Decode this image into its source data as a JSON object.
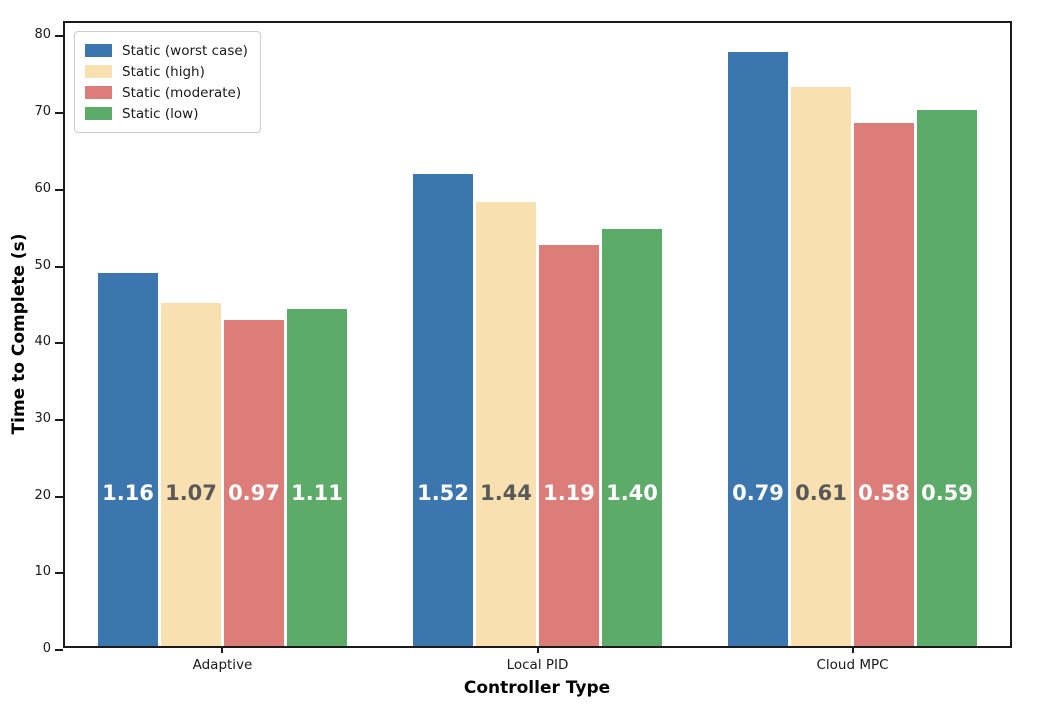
{
  "figure": {
    "background": "#ffffff",
    "spine_color": "#1a1a1a",
    "legend_border_color": "#cccccc"
  },
  "chart_data": {
    "type": "bar",
    "title": "",
    "xlabel": "Controller Type",
    "ylabel": "Time to Complete (s)",
    "ylim": [
      0,
      80
    ],
    "yticks": [
      0,
      10,
      20,
      30,
      40,
      50,
      60,
      70,
      80
    ],
    "categories": [
      "Adaptive",
      "Local PID",
      "Cloud MPC"
    ],
    "grid": false,
    "legend_position": "upper left",
    "series": [
      {
        "name": "Static (worst case)",
        "color": "#3b76af",
        "bar_label_color": "#ffffff",
        "values": [
          49.0,
          62.0,
          78.0
        ],
        "bar_labels": [
          "1.16",
          "1.52",
          "0.79"
        ]
      },
      {
        "name": "Static (high)",
        "color": "#f8e0b1",
        "bar_label_color": "#595959",
        "values": [
          45.0,
          58.3,
          73.4
        ],
        "bar_labels": [
          "1.07",
          "1.44",
          "0.61"
        ]
      },
      {
        "name": "Static (moderate)",
        "color": "#dc7d7a",
        "bar_label_color": "#ffffff",
        "values": [
          42.8,
          52.6,
          68.7
        ],
        "bar_labels": [
          "0.97",
          "1.19",
          "0.58"
        ]
      },
      {
        "name": "Static (low)",
        "color": "#5cab68",
        "bar_label_color": "#ffffff",
        "values": [
          44.2,
          54.7,
          70.4
        ],
        "bar_labels": [
          "1.11",
          "1.40",
          "0.59"
        ]
      }
    ],
    "bar_labels_at_value": 20
  }
}
